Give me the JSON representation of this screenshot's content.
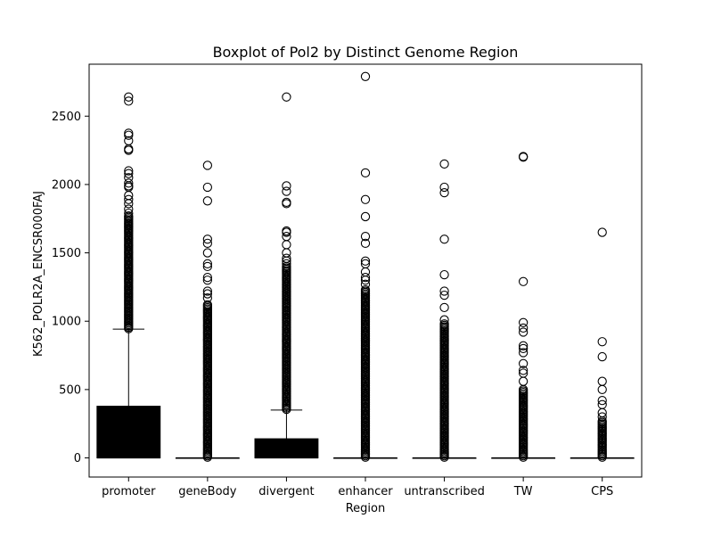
{
  "chart_data": {
    "type": "box",
    "title": "Boxplot of Pol2 by Distinct Genome Region",
    "xlabel": "Region",
    "ylabel": "K562_POLR2A_ENCSR000FAJ",
    "ylim": [
      -140,
      2880
    ],
    "yticks": [
      0,
      500,
      1000,
      1500,
      2000,
      2500
    ],
    "grid": false,
    "box_color": "#000000",
    "outlier_marker": "open-circle",
    "categories": [
      "promoter",
      "geneBody",
      "divergent",
      "enhancer",
      "untranscribed",
      "TW",
      "CPS"
    ],
    "boxes": [
      {
        "region": "promoter",
        "min": 0,
        "q1": 0,
        "median": 0,
        "q3": 378,
        "whisker_high": 942,
        "outliers_sparse": [
          2640,
          2610,
          2375,
          2360,
          2320,
          2260,
          2250,
          2100,
          2080,
          2050,
          2010,
          1990,
          1980,
          1920,
          1890,
          1860,
          1820,
          1790
        ],
        "outlier_band": [
          945,
          1770
        ]
      },
      {
        "region": "geneBody",
        "min": 0,
        "q1": 0,
        "median": 0,
        "q3": 0,
        "whisker_high": 0,
        "outliers_sparse": [
          2140,
          1980,
          1880,
          1600,
          1570,
          1500,
          1420,
          1400,
          1320,
          1300,
          1220,
          1200,
          1170
        ],
        "outlier_band": [
          5,
          1120
        ]
      },
      {
        "region": "divergent",
        "min": 0,
        "q1": 0,
        "median": 0,
        "q3": 140,
        "whisker_high": 350,
        "outliers_sparse": [
          2640,
          1990,
          1950,
          1870,
          1860,
          1660,
          1650,
          1620,
          1560,
          1500,
          1460,
          1440,
          1420
        ],
        "outlier_band": [
          355,
          1400
        ]
      },
      {
        "region": "enhancer",
        "min": 0,
        "q1": 0,
        "median": 0,
        "q3": 0,
        "whisker_high": 0,
        "outliers_sparse": [
          2790,
          2085,
          1890,
          1765,
          1620,
          1570,
          1440,
          1420,
          1360,
          1320,
          1300,
          1270
        ],
        "outlier_band": [
          5,
          1230
        ]
      },
      {
        "region": "untranscribed",
        "min": 0,
        "q1": 0,
        "median": 0,
        "q3": 0,
        "whisker_high": 0,
        "outliers_sparse": [
          2150,
          1980,
          1940,
          1600,
          1340,
          1220,
          1190,
          1100,
          1010
        ],
        "outlier_band": [
          5,
          980
        ]
      },
      {
        "region": "TW",
        "min": 0,
        "q1": 0,
        "median": 0,
        "q3": 0,
        "whisker_high": 0,
        "outliers_sparse": [
          2205,
          2200,
          1290,
          990,
          950,
          920,
          820,
          800,
          770,
          690,
          640,
          620,
          560
        ],
        "outlier_band": [
          5,
          500
        ]
      },
      {
        "region": "CPS",
        "min": 0,
        "q1": 0,
        "median": 0,
        "q3": 0,
        "whisker_high": 0,
        "outliers_sparse": [
          1650,
          850,
          740,
          560,
          500,
          420,
          390,
          330,
          300
        ],
        "outlier_band": [
          5,
          270
        ]
      }
    ]
  }
}
